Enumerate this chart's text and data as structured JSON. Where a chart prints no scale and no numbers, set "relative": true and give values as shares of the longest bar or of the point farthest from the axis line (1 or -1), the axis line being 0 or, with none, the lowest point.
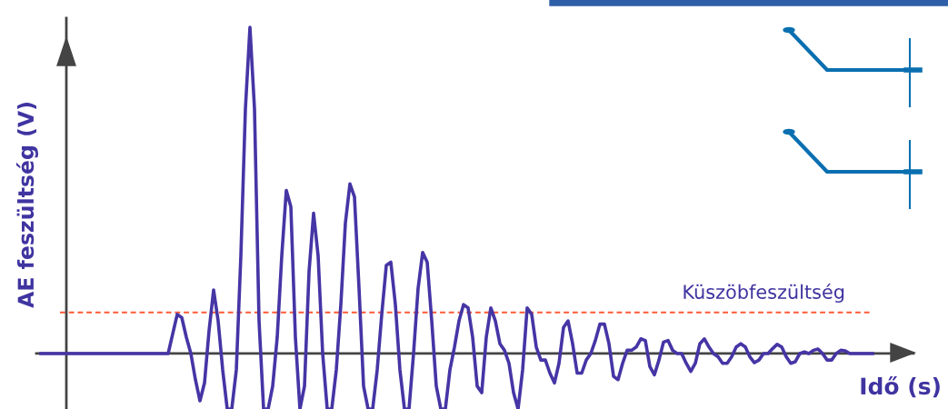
{
  "chart_data": {
    "type": "line",
    "relative": true,
    "ylabel": "AE feszültség (V)",
    "xlabel": "Idő (s)",
    "marker": "none",
    "line_style": "solid",
    "legend": false,
    "categories": [
      null,
      null,
      null,
      null,
      null,
      null,
      null,
      null,
      null,
      null,
      null,
      null,
      null,
      null,
      null,
      null,
      null,
      null,
      null,
      null,
      null,
      null,
      null,
      null,
      null,
      null,
      null,
      null,
      null,
      null,
      null,
      null,
      null,
      null,
      null,
      null,
      null,
      null,
      null,
      null,
      null,
      null,
      null,
      null,
      null,
      null,
      null,
      null,
      null,
      null,
      null,
      null,
      null,
      null,
      null,
      null,
      null,
      null,
      null,
      null,
      null,
      null,
      null,
      null,
      null,
      null,
      null,
      null,
      null,
      null,
      null,
      null,
      null,
      null,
      null,
      null,
      null,
      null,
      null,
      null,
      null,
      null,
      null,
      null,
      null,
      null,
      null,
      null,
      null,
      null,
      null,
      null,
      null,
      null,
      null,
      null,
      null,
      null,
      null,
      null,
      null,
      null,
      null,
      null,
      null,
      null,
      null,
      null,
      null,
      null,
      null,
      null,
      null,
      null,
      null,
      null,
      null,
      null,
      null,
      null,
      null,
      null,
      null,
      null,
      null,
      null,
      null,
      null,
      null,
      null,
      null,
      null,
      null,
      null,
      null,
      null,
      null,
      null,
      null,
      null,
      null,
      null,
      null,
      null,
      null,
      null,
      null,
      null,
      null,
      null,
      null,
      null,
      null,
      null,
      null,
      null,
      null,
      null,
      null,
      null,
      null,
      null,
      null,
      null,
      null,
      null,
      null,
      null,
      null,
      null,
      null,
      null,
      null,
      null,
      null,
      null,
      null,
      null,
      null,
      null,
      null,
      null,
      null,
      null
    ],
    "series": [
      {
        "color": "#4535a5",
        "values": [
          0,
          0,
          0,
          0,
          0,
          0,
          0,
          0,
          0,
          0,
          0,
          0,
          0,
          0,
          0,
          0,
          0,
          0,
          0,
          0,
          0,
          0,
          0,
          0,
          0,
          0,
          0,
          0,
          0,
          0.06,
          0.12,
          0.11,
          0.05,
          0.0,
          -0.08,
          -0.145,
          -0.09,
          0.07,
          0.195,
          0.1,
          -0.05,
          -0.17,
          -0.17,
          -0.05,
          0.3,
          0.75,
          1.0,
          0.75,
          0.1,
          -0.17,
          -0.17,
          -0.1,
          0.05,
          0.3,
          0.5,
          0.45,
          0.05,
          -0.17,
          -0.1,
          0.25,
          0.43,
          0.3,
          0.0,
          -0.17,
          -0.17,
          -0.05,
          0.15,
          0.4,
          0.52,
          0.48,
          0.2,
          -0.1,
          -0.17,
          -0.17,
          -0.05,
          0.12,
          0.27,
          0.28,
          0.15,
          -0.05,
          -0.17,
          -0.17,
          0.0,
          0.2,
          0.31,
          0.28,
          0.1,
          -0.1,
          -0.17,
          -0.17,
          -0.05,
          0.02,
          0.1,
          0.15,
          0.14,
          0.05,
          -0.1,
          -0.12,
          0.05,
          0.14,
          0.1,
          0.03,
          0.01,
          -0.03,
          -0.12,
          -0.17,
          -0.05,
          0.14,
          0.12,
          0.02,
          -0.02,
          -0.02,
          -0.06,
          -0.09,
          -0.03,
          0.08,
          0.1,
          0.03,
          -0.06,
          -0.06,
          -0.02,
          0.0,
          0.04,
          0.09,
          0.09,
          0.03,
          -0.07,
          -0.08,
          -0.03,
          0.01,
          0.01,
          0.02,
          0.045,
          0.04,
          -0.04,
          -0.065,
          -0.02,
          0.035,
          0.04,
          0.01,
          0.0,
          0.0,
          -0.03,
          -0.055,
          -0.03,
          0.03,
          0.045,
          0.02,
          0.0,
          -0.01,
          -0.03,
          -0.03,
          -0.01,
          0.02,
          0.03,
          0.02,
          -0.01,
          -0.028,
          -0.02,
          0.0,
          0.0,
          0.015,
          0.028,
          0.02,
          -0.01,
          -0.03,
          -0.025,
          0.0,
          0.005,
          0.0,
          0.01,
          0.014,
          0.0,
          -0.02,
          -0.02,
          0.0,
          0.01,
          0.008,
          0.0,
          0.0,
          0,
          0,
          0,
          0
        ]
      }
    ],
    "ref_lines": [
      {
        "axis": "y",
        "value": 0.126,
        "label": "Küszöbfeszültség",
        "color": "#ff5a36",
        "line_style": "dashed"
      }
    ]
  }
}
